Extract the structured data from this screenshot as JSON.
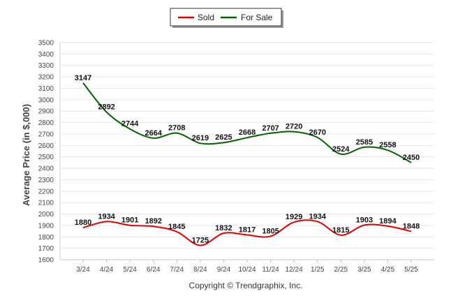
{
  "chart_data": {
    "type": "line",
    "categories": [
      "3/24",
      "4/24",
      "5/24",
      "6/24",
      "7/24",
      "8/24",
      "9/24",
      "10/24",
      "11/24",
      "12/24",
      "1/25",
      "2/25",
      "3/25",
      "4/25",
      "5/25"
    ],
    "series": [
      {
        "name": "Sold",
        "color": "#e30000",
        "values": [
          1880,
          1934,
          1901,
          1892,
          1845,
          1725,
          1832,
          1817,
          1805,
          1929,
          1934,
          1815,
          1903,
          1894,
          1848
        ]
      },
      {
        "name": "For Sale",
        "color": "#006400",
        "values": [
          3147,
          2892,
          2744,
          2664,
          2708,
          2619,
          2625,
          2668,
          2707,
          2720,
          2670,
          2524,
          2585,
          2558,
          2450
        ]
      }
    ],
    "ylabel": "Average Price (in $,000)",
    "xlabel": "",
    "ylim": [
      1600,
      3500
    ],
    "yticks": [
      1600,
      1700,
      1800,
      1900,
      2000,
      2100,
      2200,
      2300,
      2400,
      2500,
      2600,
      2700,
      2800,
      2900,
      3000,
      3100,
      3200,
      3300,
      3400,
      3500
    ],
    "grid": true,
    "legend_position": "top-center",
    "credit": "Copyright © Trendgraphix, Inc."
  }
}
